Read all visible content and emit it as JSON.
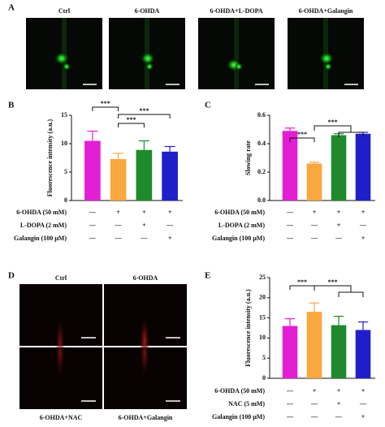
{
  "panels": {
    "a": {
      "label": "A",
      "images": [
        "Ctrl",
        "6-OHDA",
        "6-OHDA+L-DOPA",
        "6-OHDA+Galangin"
      ]
    },
    "b": {
      "label": "B"
    },
    "c": {
      "label": "C"
    },
    "d": {
      "label": "D",
      "images": [
        "Ctrl",
        "6-OHDA",
        "6-OHDA+NAC",
        "6-OHDA+Galangin"
      ]
    },
    "e": {
      "label": "E"
    }
  },
  "chart_data": [
    {
      "type": "bar",
      "y_label": "Fluorescence intensity (a.u.)",
      "values": [
        10.5,
        7.3,
        8.9,
        8.6
      ],
      "errors": [
        1.7,
        1.0,
        1.6,
        0.9
      ],
      "colors": [
        "#e31fd6",
        "#f9a73e",
        "#1f8a2c",
        "#1f1fc9"
      ],
      "ylim": [
        0,
        15
      ],
      "yticks": [
        0,
        5,
        10,
        15
      ],
      "annotations": [
        "***",
        "***",
        "***"
      ],
      "treatments": [
        {
          "name": "6-OHDA (50 mM)",
          "signs": [
            "—",
            "+",
            "+",
            "+"
          ]
        },
        {
          "name": "L-DOPA (2 mM)",
          "signs": [
            "—",
            "—",
            "+",
            "—"
          ]
        },
        {
          "name": "Galangin (100 μM)",
          "signs": [
            "—",
            "—",
            "—",
            "+"
          ]
        }
      ]
    },
    {
      "type": "bar",
      "y_label": "Slowing rate",
      "values": [
        0.49,
        0.26,
        0.46,
        0.47
      ],
      "errors": [
        0.02,
        0.01,
        0.01,
        0.01
      ],
      "colors": [
        "#e31fd6",
        "#f9a73e",
        "#1f8a2c",
        "#1f1fc9"
      ],
      "ylim": [
        0,
        0.6
      ],
      "yticks": [
        {
          "value": 0,
          "label": "0.0"
        },
        0.2,
        0.4,
        0.6
      ],
      "annotations": [
        "***",
        "***"
      ],
      "treatments": [
        {
          "name": "6-OHDA (50 mM)",
          "signs": [
            "—",
            "+",
            "+",
            "+"
          ]
        },
        {
          "name": "L-DOPA (2 mM)",
          "signs": [
            "—",
            "—",
            "+",
            "—"
          ]
        },
        {
          "name": "Galangin (100 μM)",
          "signs": [
            "—",
            "—",
            "—",
            "+"
          ]
        }
      ]
    },
    {
      "type": "bar",
      "y_label": "Fluorescence intensity (a.u.)",
      "values": [
        13.0,
        16.5,
        13.2,
        12.0
      ],
      "errors": [
        1.8,
        2.2,
        2.2,
        2.0
      ],
      "colors": [
        "#e31fd6",
        "#f9a73e",
        "#1f8a2c",
        "#1f1fc9"
      ],
      "ylim": [
        0,
        25
      ],
      "yticks": [
        0,
        5,
        10,
        15,
        20,
        25
      ],
      "annotations": [
        "***",
        "***"
      ],
      "treatments": [
        {
          "name": "6-OHDA (50 mM)",
          "signs": [
            "—",
            "+",
            "+",
            "+"
          ]
        },
        {
          "name": "NAC (5 mM)",
          "signs": [
            "—",
            "—",
            "+",
            "—"
          ]
        },
        {
          "name": "Galangin (100 μM)",
          "signs": [
            "—",
            "—",
            "—",
            "+"
          ]
        }
      ]
    }
  ]
}
